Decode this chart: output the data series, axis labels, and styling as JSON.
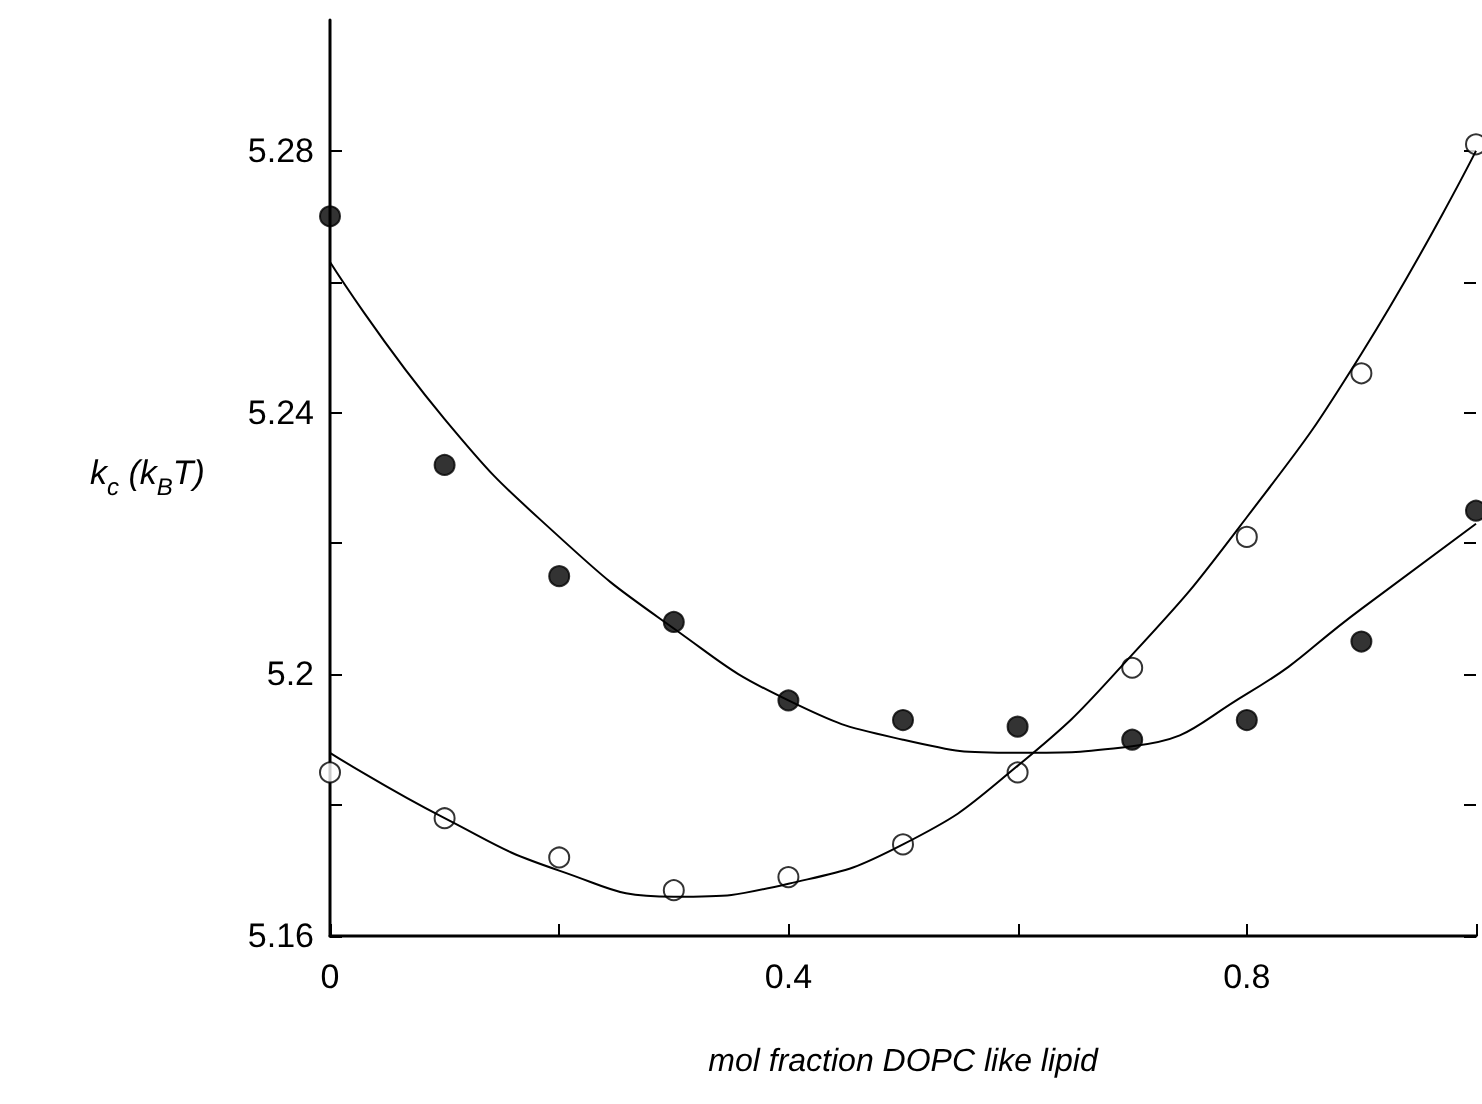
{
  "chart_data": {
    "type": "scatter",
    "xlabel": "mol fraction DOPC like lipid",
    "ylabel": "k$_{c}$ (k$_{B}$T)",
    "x": [
      0,
      0.1,
      0.2,
      0.3,
      0.4,
      0.5,
      0.6,
      0.7,
      0.8,
      0.9,
      1.0
    ],
    "series": [
      {
        "color": "#000000",
        "marker": "circle",
        "values": [
          5.27,
          5.232,
          5.215,
          5.208,
          5.196,
          5.193,
          5.192,
          5.19,
          5.193,
          5.205,
          5.225
        ]
      },
      {
        "color": "#ffffff",
        "marker": "circle",
        "values": [
          5.185,
          5.178,
          5.172,
          5.167,
          5.169,
          5.174,
          5.185,
          5.201,
          5.221,
          5.246,
          5.281
        ]
      },
      {
        "type": "line",
        "color": "#000000",
        "marker": "none",
        "line_style": "solid",
        "values": [
          5.263,
          5.239,
          5.221,
          5.207,
          5.196,
          5.19,
          5.188,
          5.189,
          5.197,
          5.21,
          5.223
        ]
      },
      {
        "type": "line",
        "color": "#000000",
        "marker": "none",
        "line_style": "solid",
        "values": [
          5.188,
          5.178,
          5.17,
          5.166,
          5.168,
          5.174,
          5.186,
          5.203,
          5.224,
          5.249,
          5.28
        ]
      }
    ],
    "xlim": [
      0,
      1.0
    ],
    "xticks": [
      0,
      {
        "value": 0.2,
        "label": null
      },
      0.4,
      {
        "value": 0.6,
        "label": null
      },
      0.8,
      {
        "value": 1.0,
        "label": null
      }
    ],
    "ylim": [
      5.16,
      5.3
    ],
    "yticks": [
      5.16,
      {
        "value": 5.18,
        "label": null
      },
      5.2,
      {
        "value": 5.22,
        "label": null
      },
      5.24,
      {
        "value": 5.26,
        "label": null
      },
      5.28
    ],
    "grid": false
  }
}
